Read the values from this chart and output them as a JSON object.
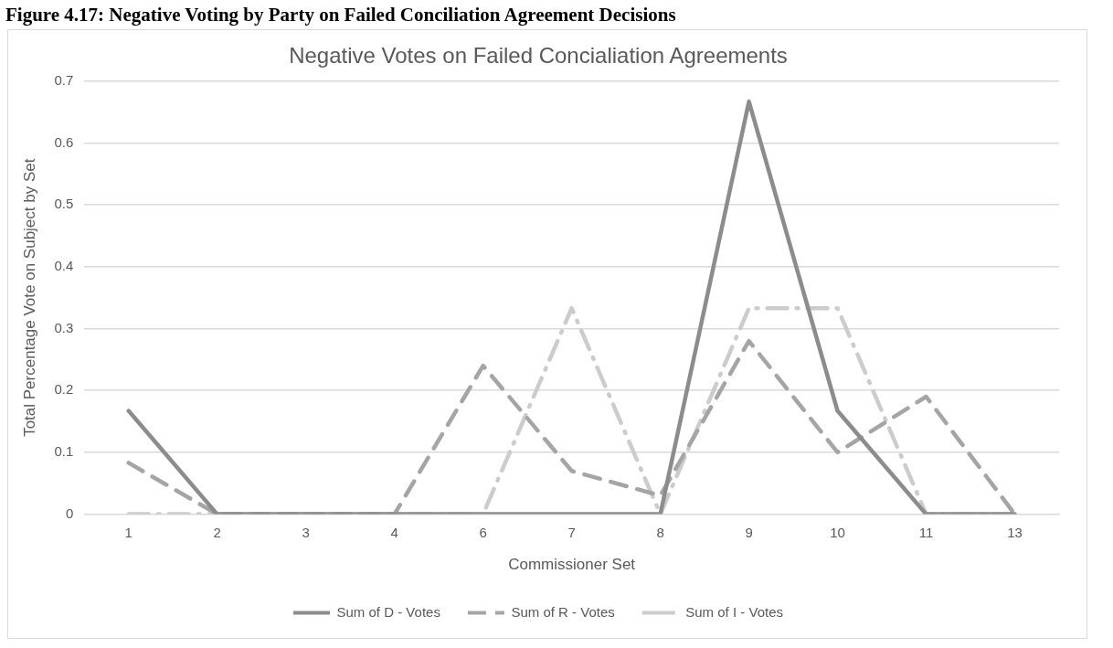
{
  "chart_data": {
    "type": "line",
    "title": "Negative Votes on Failed Concialiation Agreements",
    "xlabel": "Commissioner Set",
    "ylabel": "Total Percentage Vote on Subject by Set",
    "annotations": [
      "Figure 4.17: Negative Voting by Party on Failed Conciliation Agreement Decisions"
    ],
    "categories": [
      "1",
      "2",
      "3",
      "4",
      "6",
      "7",
      "8",
      "9",
      "10",
      "11",
      "13"
    ],
    "series": [
      {
        "name": "Sum of D - Votes",
        "color": "#8c8c8c",
        "line_style": "solid",
        "values": [
          0.167,
          0,
          0,
          0,
          0,
          0,
          0,
          0.667,
          0.167,
          0,
          0
        ]
      },
      {
        "name": "Sum of R - Votes",
        "color": "#a5a5a5",
        "line_style": "dashed",
        "values": [
          0.083,
          0,
          0,
          0,
          0.24,
          0.07,
          0.03,
          0.28,
          0.1,
          0.19,
          0
        ]
      },
      {
        "name": "Sum of I - Votes",
        "color": "#cccccc",
        "line_style": "dotted",
        "values": [
          0,
          0,
          0,
          0,
          0,
          0.333,
          0,
          0.333,
          0.333,
          0,
          0
        ]
      }
    ],
    "ylim": [
      0,
      0.7
    ],
    "yticks": [
      0,
      0.1,
      0.2,
      0.3,
      0.4,
      0.5,
      0.6,
      0.7
    ],
    "grid": "y",
    "legend": "bottom",
    "marker": "none"
  }
}
